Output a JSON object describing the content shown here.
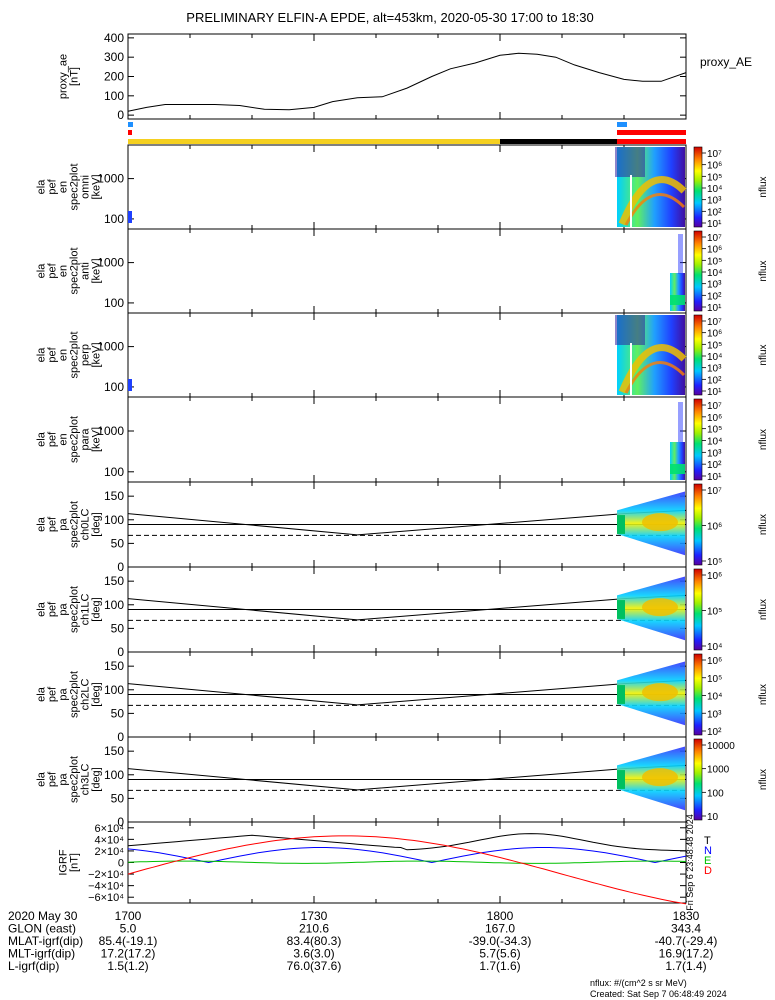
{
  "title": "PRELIMINARY ELFIN-A EPDE, alt=453km, 2020-05-30 17:00 to 18:30",
  "chart_data": {
    "type": "multi-panel-spectrogram",
    "time_range": [
      "2020-05-30 17:00",
      "2020-05-30 18:30"
    ],
    "panels": [
      {
        "name": "proxy_ae",
        "type": "line",
        "ylabel_lines": [
          "proxy_ae",
          "[nT]"
        ],
        "yticks": [
          "400",
          "300",
          "200",
          "100",
          "0"
        ],
        "ytick_values": [
          400,
          300,
          200,
          100,
          0
        ],
        "ylim": [
          -20,
          420
        ],
        "legend": "proxy_AE",
        "series": [
          {
            "x": [
              0,
              3,
              6,
              10,
              14,
              18,
              22,
              26,
              30,
              33,
              37,
              41,
              45,
              49,
              52,
              56,
              60,
              63,
              66,
              69,
              72,
              76,
              80,
              83,
              86,
              90
            ],
            "y": [
              20,
              40,
              55,
              55,
              55,
              50,
              30,
              28,
              40,
              70,
              90,
              95,
              140,
              200,
              240,
              270,
              310,
              320,
              315,
              300,
              260,
              220,
              185,
              175,
              175,
              220
            ]
          }
        ]
      },
      {
        "name": "omni",
        "type": "spectrogram",
        "ylabel_lines": [
          "ela",
          "pef",
          "en",
          "spec2plot",
          "omni",
          "[keV]"
        ],
        "yticks": [
          "1000",
          "100"
        ],
        "cbar_ticks": [
          "10⁷",
          "10⁶",
          "10⁵",
          "10⁴",
          "10³",
          "10²",
          "10¹"
        ],
        "cbar_label": "nflux"
      },
      {
        "name": "anti",
        "type": "spectrogram",
        "ylabel_lines": [
          "ela",
          "pef",
          "en",
          "spec2plot",
          "anti",
          "[keV]"
        ],
        "yticks": [
          "1000",
          "100"
        ],
        "cbar_ticks": [
          "10⁷",
          "10⁶",
          "10⁵",
          "10⁴",
          "10³",
          "10²",
          "10¹"
        ],
        "cbar_label": "nflux"
      },
      {
        "name": "perp",
        "type": "spectrogram",
        "ylabel_lines": [
          "ela",
          "pef",
          "en",
          "spec2plot",
          "perp",
          "[keV]"
        ],
        "yticks": [
          "1000",
          "100"
        ],
        "cbar_ticks": [
          "10⁷",
          "10⁶",
          "10⁵",
          "10⁴",
          "10³",
          "10²",
          "10¹"
        ],
        "cbar_label": "nflux"
      },
      {
        "name": "para",
        "type": "spectrogram",
        "ylabel_lines": [
          "ela",
          "pef",
          "en",
          "spec2plot",
          "para",
          "[keV]"
        ],
        "yticks": [
          "1000",
          "100"
        ],
        "cbar_ticks": [
          "10⁷",
          "10⁶",
          "10⁵",
          "10⁴",
          "10³",
          "10²",
          "10¹"
        ],
        "cbar_label": "nflux"
      },
      {
        "name": "ch0LC",
        "type": "pitch-angle",
        "ylabel_lines": [
          "ela",
          "pef",
          "pa",
          "spec2plot",
          "ch0LC",
          "[deg]"
        ],
        "yticks": [
          "150",
          "100",
          "50",
          "0"
        ],
        "cbar_ticks": [
          "10⁷",
          "10⁶",
          "10⁵"
        ],
        "cbar_label": "nflux"
      },
      {
        "name": "ch1LC",
        "type": "pitch-angle",
        "ylabel_lines": [
          "ela",
          "pef",
          "pa",
          "spec2plot",
          "ch1LC",
          "[deg]"
        ],
        "yticks": [
          "150",
          "100",
          "50",
          "0"
        ],
        "cbar_ticks": [
          "10⁶",
          "10⁵",
          "10⁴"
        ],
        "cbar_label": "nflux"
      },
      {
        "name": "ch2LC",
        "type": "pitch-angle",
        "ylabel_lines": [
          "ela",
          "pef",
          "pa",
          "spec2plot",
          "ch2LC",
          "[deg]"
        ],
        "yticks": [
          "150",
          "100",
          "50",
          "0"
        ],
        "cbar_ticks": [
          "10⁶",
          "10⁵",
          "10⁴",
          "10³",
          "10²"
        ],
        "cbar_label": "nflux"
      },
      {
        "name": "ch3LC",
        "type": "pitch-angle",
        "ylabel_lines": [
          "ela",
          "pef",
          "pa",
          "spec2plot",
          "ch3LC",
          "[deg]"
        ],
        "yticks": [
          "150",
          "100",
          "50",
          "0"
        ],
        "cbar_ticks": [
          "10000",
          "1000",
          "100",
          "10"
        ],
        "cbar_label": "nflux"
      },
      {
        "name": "IGRF",
        "type": "line",
        "ylabel_lines": [
          "IGRF",
          "[nT]"
        ],
        "yticks": [
          "6×10⁴",
          "4×10⁴",
          "2×10⁴",
          "0",
          "−2×10⁴",
          "−4×10⁴",
          "−6×10⁴"
        ],
        "legend_items": [
          {
            "label": "T",
            "color": "#000000"
          },
          {
            "label": "N",
            "color": "#0000ff"
          },
          {
            "label": "E",
            "color": "#00c000"
          },
          {
            "label": "D",
            "color": "#ff0000"
          }
        ],
        "side_note": "Fri Sep 6 23:48:48 2024"
      }
    ],
    "xaxis_rows": [
      {
        "label": "2020 May 30",
        "values": [
          "1700",
          "1730",
          "1800",
          "1830"
        ]
      },
      {
        "label": "GLON (east)",
        "values": [
          "5.0",
          "210.6",
          "167.0",
          "343.4"
        ]
      },
      {
        "label": "MLAT-igrf(dip)",
        "values": [
          "85.4(-19.1)",
          "83.4(80.3)",
          "-39.0(-34.3)",
          "-40.7(-29.4)"
        ]
      },
      {
        "label": "MLT-igrf(dip)",
        "values": [
          "17.2(17.2)",
          "3.6(3.0)",
          "5.7(5.6)",
          "16.9(17.2)"
        ]
      },
      {
        "label": "L-igrf(dip)",
        "values": [
          "1.5(1.2)",
          "76.0(37.6)",
          "1.7(1.6)",
          "1.7(1.4)"
        ]
      }
    ]
  },
  "footer": {
    "units": "nflux: #/(cm^2 s sr MeV)",
    "created": "Created: Sat Sep  7 06:48:49 2024"
  },
  "colors": {
    "yellow": "#f5d020",
    "black": "#000000",
    "red": "#ff0000",
    "blue": "#1e90ff"
  }
}
